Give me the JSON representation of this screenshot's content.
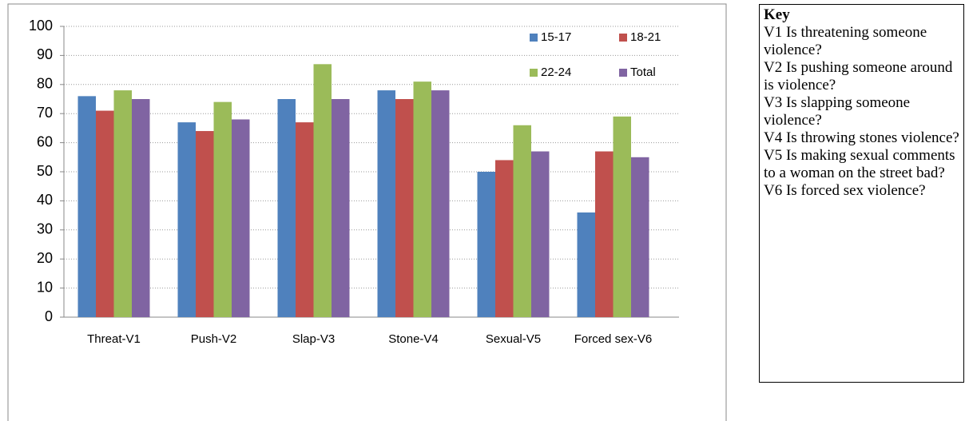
{
  "chart_data": {
    "type": "bar",
    "categories": [
      "Threat-V1",
      "Push-V2",
      "Slap-V3",
      "Stone-V4",
      "Sexual-V5",
      "Forced sex-V6"
    ],
    "series": [
      {
        "name": "15-17",
        "color": "#4f81bd",
        "values": [
          76,
          67,
          75,
          78,
          50,
          36
        ]
      },
      {
        "name": "18-21",
        "color": "#c0504d",
        "values": [
          71,
          64,
          67,
          75,
          54,
          57
        ]
      },
      {
        "name": "22-24",
        "color": "#9bbb59",
        "values": [
          78,
          74,
          87,
          81,
          66,
          69
        ]
      },
      {
        "name": "Total",
        "color": "#8064a2",
        "values": [
          75,
          68,
          75,
          78,
          57,
          55
        ]
      }
    ],
    "ylim": [
      0,
      100
    ],
    "yticks": [
      0,
      10,
      20,
      30,
      40,
      50,
      60,
      70,
      80,
      90,
      100
    ],
    "grid": true,
    "legend": "top-right"
  },
  "key": {
    "title": "Key",
    "items": [
      "V1 Is threatening someone violence?",
      "V2 Is pushing someone around is violence?",
      "V3 Is slapping someone violence?",
      "V4 Is throwing stones violence?",
      "V5 Is making sexual comments to a woman on the street bad?",
      "V6 Is forced sex violence?"
    ]
  }
}
